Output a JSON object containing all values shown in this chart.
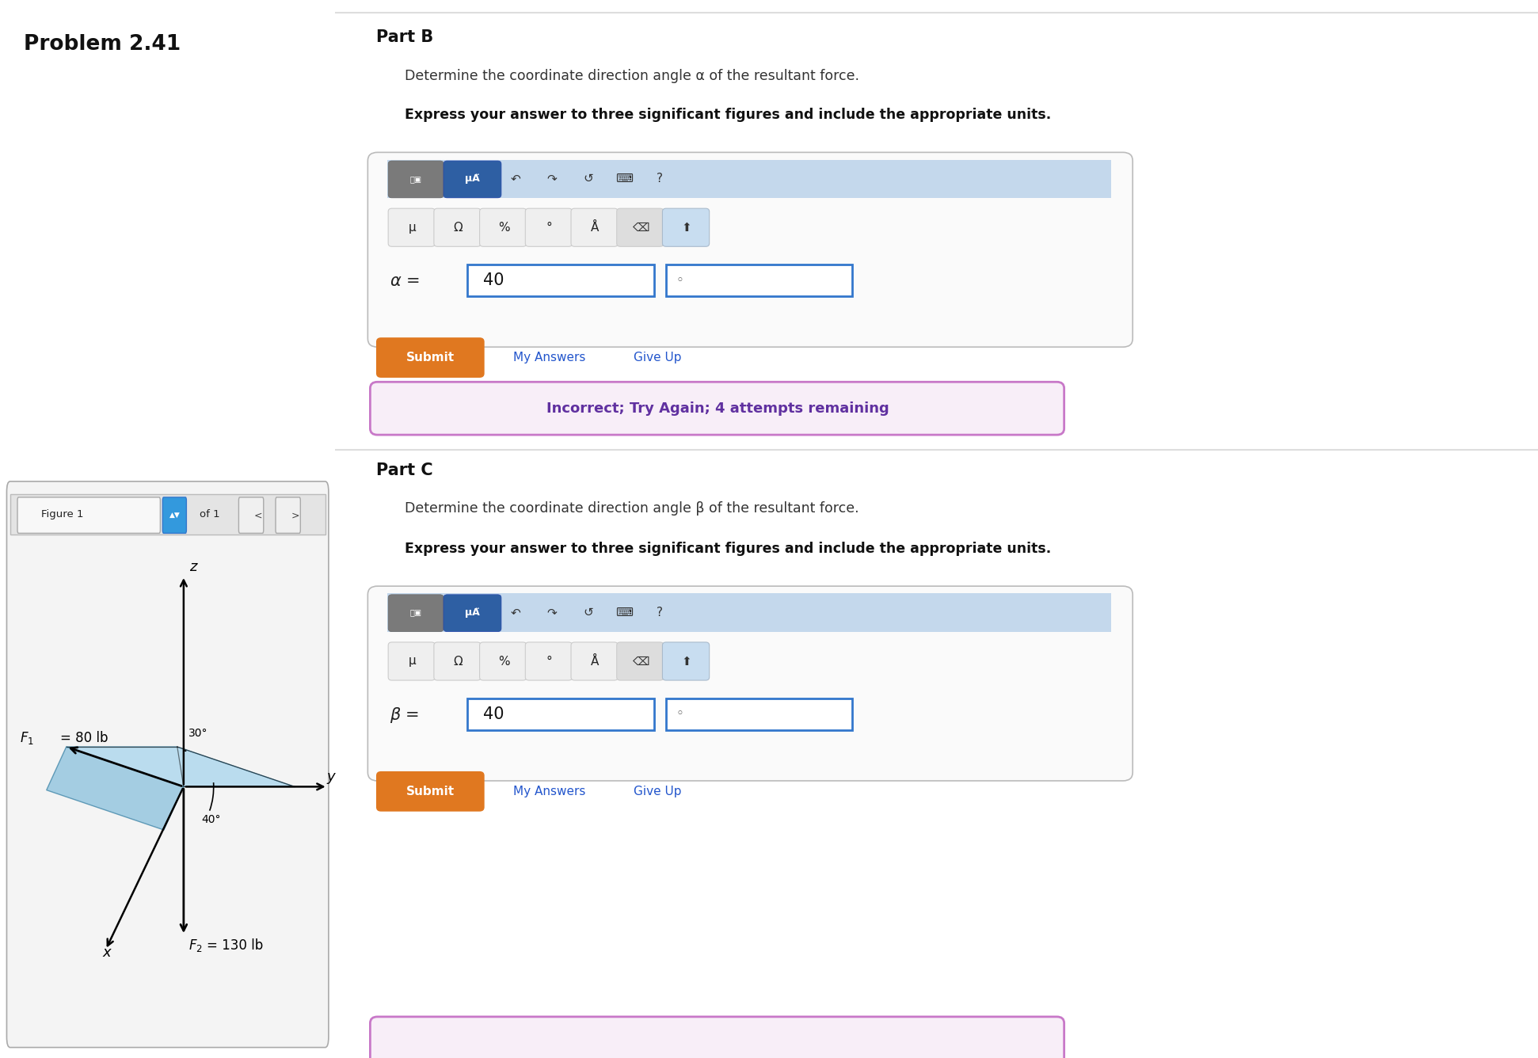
{
  "bg_left": "#e8eef5",
  "bg_right": "#ffffff",
  "problem_title": "Problem 2.41",
  "part_b_title": "Part B",
  "part_b_desc": "Determine the coordinate direction angle α of the resultant force.",
  "part_b_bold": "Express your answer to three significant figures and include the appropriate units.",
  "alpha_value": "40",
  "part_c_title": "Part C",
  "part_c_desc": "Determine the coordinate direction angle β of the resultant force.",
  "part_c_bold": "Express your answer to three significant figures and include the appropriate units.",
  "beta_value": "40",
  "incorrect_text": "Incorrect; Try Again; 4 attempts remaining",
  "incorrect_bg": "#f8eef8",
  "incorrect_border": "#c878c8",
  "incorrect_text_color": "#6030a0",
  "submit_bg": "#e07820",
  "submit_text": "Submit",
  "my_answers": "My Answers",
  "give_up": "Give Up",
  "figure_label": "Figure 1",
  "of_1": "of 1",
  "F1_label": "F",
  "F1_sub": "1",
  "F1_val": " = 80 lb",
  "F2_label": "F",
  "F2_sub": "2",
  "F2_val": " = 130 lb",
  "angle1": "30°",
  "angle2": "40°",
  "axis_x": "x",
  "axis_y": "y",
  "axis_z": "z",
  "divider_color": "#dddddd",
  "toolbar_bg": "#c4d8ec",
  "toolbar_btn_gray": "#7a7a7a",
  "toolbar_btn_blue": "#2e5fa3"
}
